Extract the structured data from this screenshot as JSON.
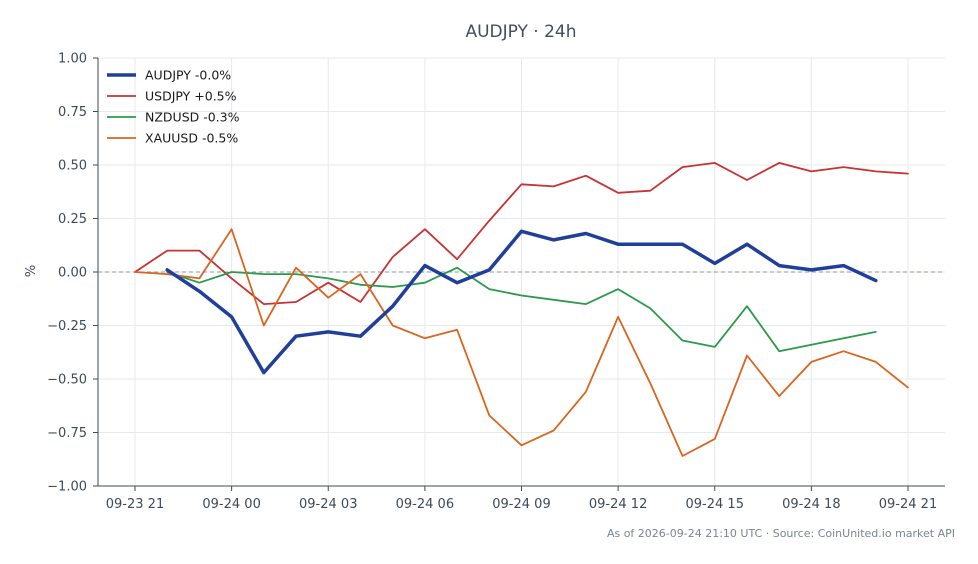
{
  "chart_data": {
    "type": "line",
    "title": "AUDJPY · 24h",
    "xlabel": "",
    "ylabel": "%",
    "ylim": [
      -1.0,
      1.0
    ],
    "xlim": [
      -0.05,
      24.1
    ],
    "yticks": [
      1.0,
      0.75,
      0.5,
      0.25,
      0.0,
      -0.25,
      -0.5,
      -0.75,
      -1.0
    ],
    "ytick_labels": [
      "1.00",
      "0.75",
      "0.50",
      "0.25",
      "0.00",
      "−0.25",
      "−0.50",
      "−0.75",
      "−1.00"
    ],
    "xticks": [
      0,
      3,
      6,
      9,
      12,
      15,
      18,
      21,
      24
    ],
    "xtick_labels": [
      "09-23 21",
      "09-24 00",
      "09-24 03",
      "09-24 06",
      "09-24 09",
      "09-24 12",
      "09-24 15",
      "09-24 18",
      "09-24 21"
    ],
    "grid": true,
    "zero_line": true,
    "legend_position": "top-left",
    "series": [
      {
        "name": "AUDJPY -0.0%",
        "color": "#1f3f9a",
        "width": 3.5,
        "x": [
          1,
          2,
          3,
          4,
          5,
          6,
          7,
          8,
          9,
          10,
          11,
          12,
          13,
          14,
          15,
          16,
          17,
          18,
          19,
          20,
          21,
          22,
          23
        ],
        "values": [
          0.01,
          -0.09,
          -0.21,
          -0.47,
          -0.3,
          -0.28,
          -0.3,
          -0.16,
          0.03,
          -0.05,
          0.01,
          0.19,
          0.15,
          0.18,
          0.13,
          0.13,
          0.13,
          0.04,
          0.13,
          0.03,
          0.01,
          0.03,
          -0.04
        ]
      },
      {
        "name": "USDJPY +0.5%",
        "color": "#c83232",
        "width": 1.8,
        "x": [
          0,
          1,
          2,
          3,
          4,
          5,
          6,
          7,
          8,
          9,
          10,
          11,
          12,
          13,
          14,
          15,
          16,
          17,
          18,
          19,
          20,
          21,
          22,
          23,
          24
        ],
        "values": [
          0.0,
          0.1,
          0.1,
          -0.03,
          -0.15,
          -0.14,
          -0.05,
          -0.14,
          0.07,
          0.2,
          0.06,
          0.24,
          0.41,
          0.4,
          0.45,
          0.37,
          0.38,
          0.49,
          0.51,
          0.43,
          0.51,
          0.47,
          0.49,
          0.47,
          0.46
        ]
      },
      {
        "name": "NZDUSD -0.3%",
        "color": "#2a9b4a",
        "width": 1.8,
        "x": [
          1,
          2,
          3,
          4,
          5,
          6,
          7,
          8,
          9,
          10,
          11,
          12,
          13,
          14,
          15,
          16,
          17,
          18,
          19,
          20,
          21,
          22,
          23
        ],
        "values": [
          0.0,
          -0.05,
          0.0,
          -0.01,
          -0.01,
          -0.03,
          -0.06,
          -0.07,
          -0.05,
          0.02,
          -0.08,
          -0.11,
          -0.13,
          -0.15,
          -0.08,
          -0.17,
          -0.32,
          -0.35,
          -0.16,
          -0.37,
          -0.34,
          -0.31,
          -0.28
        ]
      },
      {
        "name": "XAUUSD -0.5%",
        "color": "#d9651f",
        "width": 1.8,
        "x": [
          0,
          1,
          2,
          3,
          4,
          5,
          6,
          7,
          8,
          9,
          10,
          11,
          12,
          13,
          14,
          15,
          16,
          17,
          18,
          19,
          20,
          21,
          22,
          23,
          24
        ],
        "values": [
          0.0,
          -0.01,
          -0.03,
          0.2,
          -0.25,
          0.02,
          -0.12,
          -0.01,
          -0.25,
          -0.31,
          -0.27,
          -0.67,
          -0.81,
          -0.74,
          -0.56,
          -0.21,
          -0.52,
          -0.86,
          -0.78,
          -0.39,
          -0.58,
          -0.42,
          -0.37,
          -0.42,
          -0.54
        ]
      }
    ]
  },
  "footer": "As of 2026-09-24 21:10 UTC · Source: CoinUnited.io market API"
}
